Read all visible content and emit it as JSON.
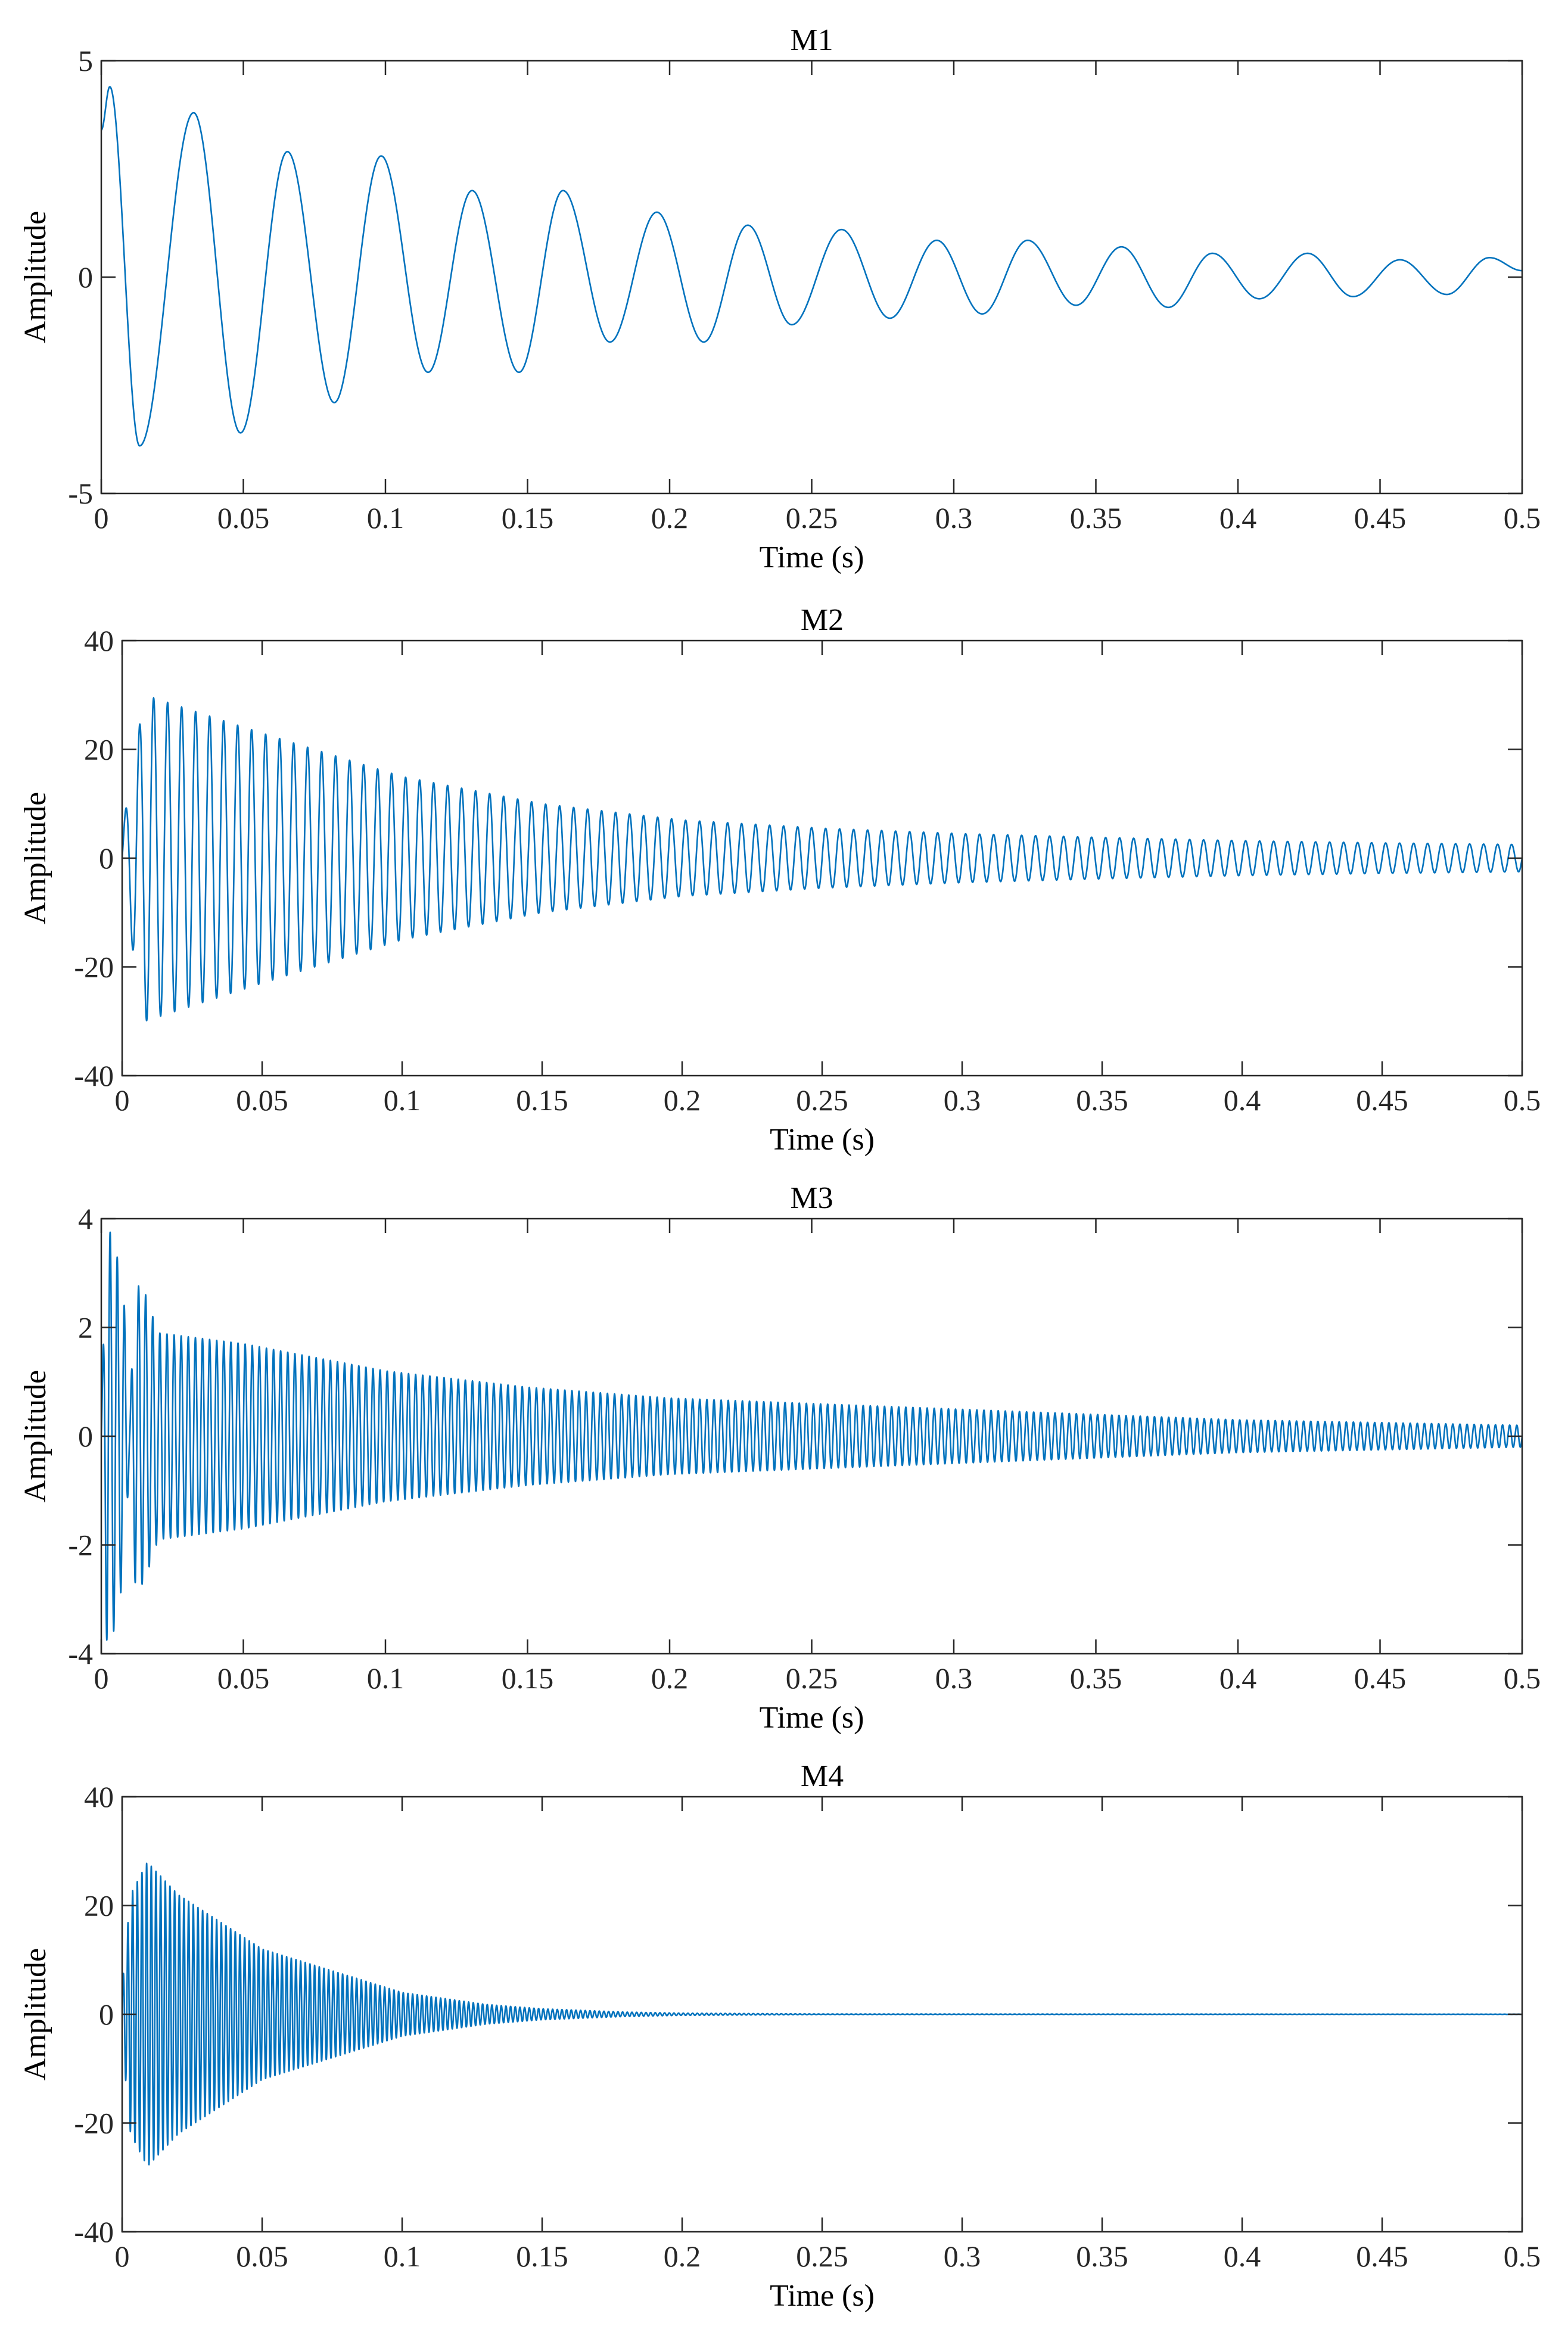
{
  "chart_data": [
    {
      "type": "line",
      "title": "M1",
      "xlabel": "Time (s)",
      "ylabel": "Amplitude",
      "xlim": [
        0,
        0.5
      ],
      "ylim": [
        -5,
        5
      ],
      "xticks": [
        0,
        0.05,
        0.1,
        0.15,
        0.2,
        0.25,
        0.3,
        0.35,
        0.4,
        0.45,
        0.5
      ],
      "xtick_labels": [
        "0",
        "0.05",
        "0.1",
        "0.15",
        "0.2",
        "0.25",
        "0.3",
        "0.35",
        "0.4",
        "0.45",
        "0.5"
      ],
      "yticks": [
        -5,
        0,
        5
      ],
      "ytick_labels": [
        "-5",
        "0",
        "5"
      ],
      "series": [
        {
          "name": "M1",
          "color": "#0072BD",
          "x": [
            0,
            0.003,
            0.0135,
            0.0325,
            0.049,
            0.0655,
            0.082,
            0.0985,
            0.115,
            0.1305,
            0.147,
            0.1625,
            0.179,
            0.1955,
            0.212,
            0.2275,
            0.243,
            0.2605,
            0.2775,
            0.294,
            0.31,
            0.326,
            0.343,
            0.359,
            0.3755,
            0.391,
            0.4075,
            0.4245,
            0.4405,
            0.457,
            0.4735,
            0.4885,
            0.5
          ],
          "values": [
            3.4,
            4.4,
            -3.9,
            3.8,
            -3.6,
            2.9,
            -2.9,
            2.8,
            -2.2,
            2.0,
            -2.2,
            2.0,
            -1.5,
            1.5,
            -1.5,
            1.2,
            -1.1,
            1.1,
            -0.95,
            0.85,
            -0.85,
            0.85,
            -0.65,
            0.7,
            -0.7,
            0.55,
            -0.5,
            0.55,
            -0.45,
            0.4,
            -0.4,
            0.45,
            0.15
          ]
        }
      ]
    },
    {
      "type": "line",
      "title": "M2",
      "xlabel": "Time (s)",
      "ylabel": "Amplitude",
      "xlim": [
        0,
        0.5
      ],
      "ylim": [
        -40,
        40
      ],
      "xticks": [
        0,
        0.05,
        0.1,
        0.15,
        0.2,
        0.25,
        0.3,
        0.35,
        0.4,
        0.45,
        0.5
      ],
      "xtick_labels": [
        "0",
        "0.05",
        "0.1",
        "0.15",
        "0.2",
        "0.25",
        "0.3",
        "0.35",
        "0.4",
        "0.45",
        "0.5"
      ],
      "yticks": [
        -40,
        -20,
        0,
        20,
        40
      ],
      "ytick_labels": [
        "-40",
        "-20",
        "0",
        "20",
        "40"
      ],
      "series": [
        {
          "name": "M2",
          "color": "#0072BD",
          "frequency_hz": 200,
          "envelope_t": [
            0,
            0.008,
            0.05,
            0.1,
            0.15,
            0.2,
            0.25,
            0.3,
            0.35,
            0.4,
            0.45,
            0.5
          ],
          "envelope_amp": [
            5,
            30,
            23,
            15,
            10,
            7,
            5.5,
            4.5,
            3.8,
            3.2,
            2.8,
            2.5
          ]
        }
      ]
    },
    {
      "type": "line",
      "title": "M3",
      "xlabel": "Time (s)",
      "ylabel": "Amplitude",
      "xlim": [
        0,
        0.5
      ],
      "ylim": [
        -4,
        4
      ],
      "xticks": [
        0,
        0.05,
        0.1,
        0.15,
        0.2,
        0.25,
        0.3,
        0.35,
        0.4,
        0.45,
        0.5
      ],
      "xtick_labels": [
        "0",
        "0.05",
        "0.1",
        "0.15",
        "0.2",
        "0.25",
        "0.3",
        "0.35",
        "0.4",
        "0.45",
        "0.5"
      ],
      "yticks": [
        -4,
        -2,
        0,
        2,
        4
      ],
      "ytick_labels": [
        "-4",
        "-2",
        "0",
        "2",
        "4"
      ],
      "series": [
        {
          "name": "M3",
          "color": "#0072BD",
          "frequency_hz": 400,
          "envelope_t": [
            0,
            0.002,
            0.005,
            0.008,
            0.01,
            0.012,
            0.015,
            0.02,
            0.05,
            0.1,
            0.15,
            0.2,
            0.25,
            0.3,
            0.35,
            0.4,
            0.45,
            0.5
          ],
          "envelope_amp": [
            0.5,
            3.9,
            3.5,
            2.5,
            0.4,
            2.8,
            2.7,
            1.9,
            1.7,
            1.2,
            0.9,
            0.7,
            0.6,
            0.5,
            0.4,
            0.3,
            0.25,
            0.2
          ]
        }
      ]
    },
    {
      "type": "line",
      "title": "M4",
      "xlabel": "Time (s)",
      "ylabel": "Amplitude",
      "xlim": [
        0,
        0.5
      ],
      "ylim": [
        -40,
        40
      ],
      "xticks": [
        0,
        0.05,
        0.1,
        0.15,
        0.2,
        0.25,
        0.3,
        0.35,
        0.4,
        0.45,
        0.5
      ],
      "xtick_labels": [
        "0",
        "0.05",
        "0.1",
        "0.15",
        "0.2",
        "0.25",
        "0.3",
        "0.35",
        "0.4",
        "0.45",
        "0.5"
      ],
      "yticks": [
        -40,
        -20,
        0,
        20,
        40
      ],
      "ytick_labels": [
        "-40",
        "-20",
        "0",
        "20",
        "40"
      ],
      "series": [
        {
          "name": "M4",
          "color": "#0072BD",
          "frequency_hz": 600,
          "envelope_t": [
            0,
            0.003,
            0.009,
            0.02,
            0.05,
            0.1,
            0.13,
            0.15,
            0.18,
            0.2,
            0.25,
            0.5
          ],
          "envelope_amp": [
            5,
            22,
            28,
            22,
            12,
            4,
            1.8,
            1,
            0.4,
            0.2,
            0.05,
            0.02
          ]
        }
      ]
    }
  ]
}
